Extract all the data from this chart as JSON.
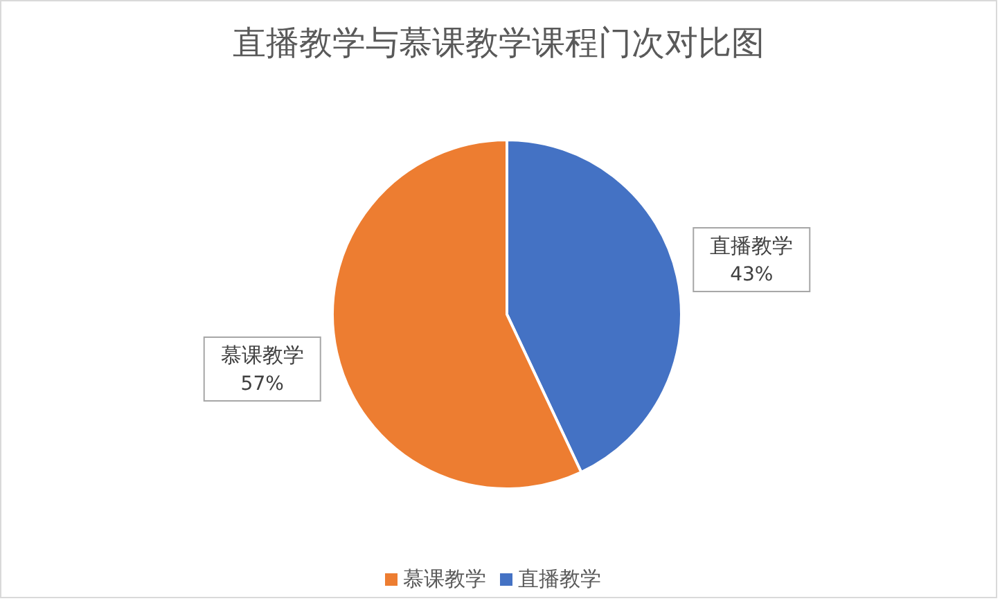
{
  "chart_data": {
    "type": "pie",
    "title": "直播教学与慕课教学课程门次对比图",
    "categories": [
      "直播教学",
      "慕课教学"
    ],
    "values": [
      43,
      57
    ],
    "value_labels": [
      "43%",
      "57%"
    ],
    "colors": [
      "#4472c4",
      "#ed7d31"
    ],
    "legend": "bottom"
  }
}
